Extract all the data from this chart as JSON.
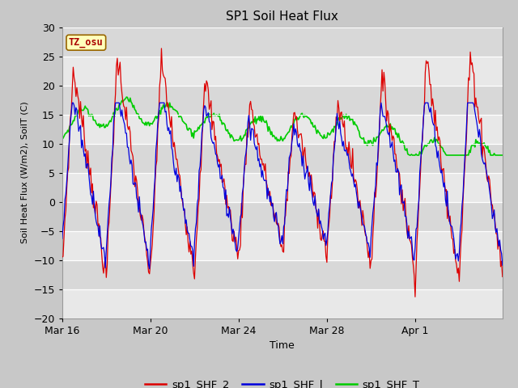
{
  "title": "SP1 Soil Heat Flux",
  "xlabel": "Time",
  "ylabel": "Soil Heat Flux (W/m2), SoilT (C)",
  "ylim": [
    -20,
    30
  ],
  "fig_bg_color": "#c8c8c8",
  "plot_bg_color": "#e8e8e8",
  "color_shf2": "#dd0000",
  "color_shf1": "#0000dd",
  "color_shft": "#00cc00",
  "label_shf2": "sp1_SHF_2",
  "label_shf1": "sp1_SHF_l",
  "label_shft": "sp1_SHF_T",
  "tz_label": "TZ_osu",
  "x_tick_labels": [
    "Mar 16",
    "Mar 20",
    "Mar 24",
    "Mar 28",
    "Apr 1"
  ],
  "x_tick_positions": [
    0,
    96,
    192,
    288,
    384
  ],
  "n_points": 480,
  "grid_color": "#ffffff",
  "stripe_color": "#d8d8d8"
}
